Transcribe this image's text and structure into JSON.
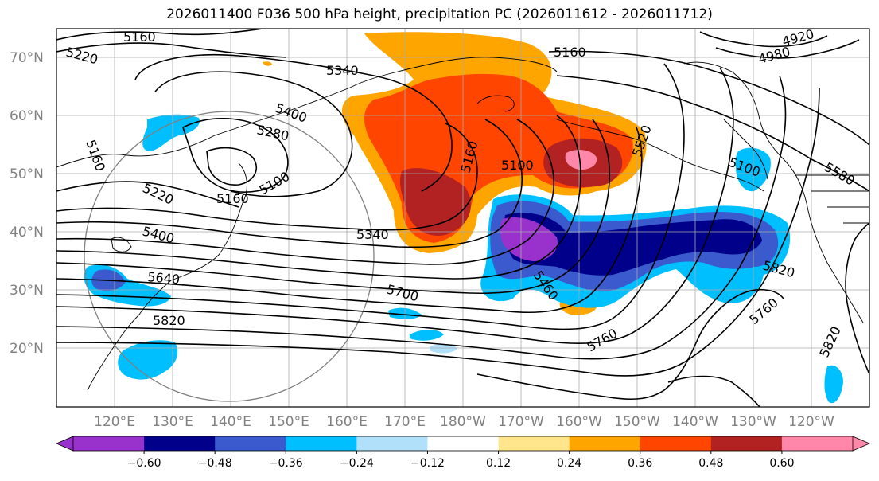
{
  "title": "2026011400 F036 500 hPa height, precipitation PC (2026011612 - 2026011712)",
  "lat_labels": [
    "20°N",
    "30°N",
    "40°N",
    "50°N",
    "60°N",
    "70°N"
  ],
  "lon_labels": [
    "120°E",
    "130°E",
    "140°E",
    "150°E",
    "160°E",
    "170°E",
    "180°W",
    "170°W",
    "160°W",
    "150°W",
    "140°W",
    "130°W",
    "120°W"
  ],
  "colorbar": {
    "colors": [
      "#9932cc",
      "#00008b",
      "#3a5acd",
      "#00bfff",
      "#b0e0fa",
      "#ffffff",
      "#ffe68c",
      "#ffa500",
      "#ff4500",
      "#b22222",
      "#ff88aa"
    ],
    "tick_labels": [
      "−0.60",
      "−0.48",
      "−0.36",
      "−0.24",
      "−0.12",
      "0.12",
      "0.24",
      "0.36",
      "0.48",
      "0.60"
    ]
  },
  "contour_labels": [
    "5160",
    "5220",
    "5340",
    "5160",
    "4920",
    "4980",
    "5100",
    "5400",
    "5280",
    "5160",
    "5220",
    "5160",
    "5100",
    "5160",
    "5520",
    "5580",
    "5100",
    "5340",
    "5400",
    "5640",
    "5460",
    "5700",
    "5820",
    "5760",
    "5820",
    "5760",
    "5820"
  ]
}
